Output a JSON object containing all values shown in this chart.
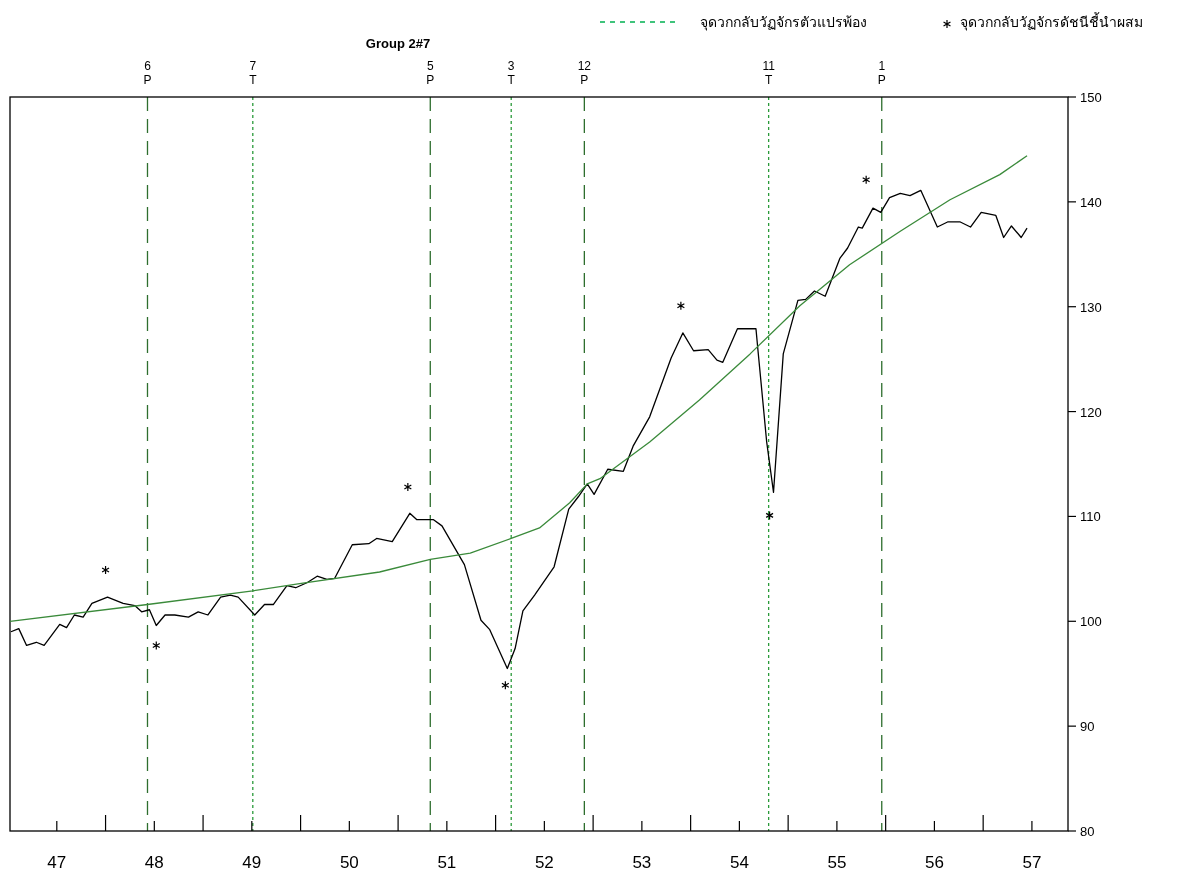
{
  "chart_data": {
    "type": "line",
    "title": "Group 2#7",
    "annotations": [
      "จุดวกกลับวัฏจักรตัวแปรพ้อง"
    ],
    "xlim": [
      46.52,
      57.37
    ],
    "xticks": [
      47,
      48,
      49,
      50,
      51,
      52,
      53,
      54,
      55,
      56,
      57,
      {
        "value": 47.5,
        "label": null
      },
      {
        "value": 48.5,
        "label": null
      },
      {
        "value": 49.5,
        "label": null
      },
      {
        "value": 50.5,
        "label": null
      },
      {
        "value": 51.5,
        "label": null
      },
      {
        "value": 52.5,
        "label": null
      },
      {
        "value": 53.5,
        "label": null
      },
      {
        "value": 54.5,
        "label": null
      },
      {
        "value": 55.5,
        "label": null
      },
      {
        "value": 56.5,
        "label": null
      }
    ],
    "ylim": [
      80,
      150
    ],
    "yticks": [
      80,
      90,
      100,
      110,
      120,
      130,
      140,
      150
    ],
    "legend": "top right",
    "series": [
      {
        "type": "line",
        "color": "#000000",
        "x": [
          46.53,
          46.61,
          46.69,
          46.79,
          46.87,
          47.03,
          47.1,
          47.18,
          47.27,
          47.36,
          47.52,
          47.68,
          47.8,
          47.87,
          47.95,
          48.02,
          48.11,
          48.21,
          48.35,
          48.45,
          48.55,
          48.68,
          48.78,
          48.86,
          49.03,
          49.13,
          49.22,
          49.36,
          49.45,
          49.57,
          49.67,
          49.77,
          49.85,
          50.03,
          50.2,
          50.28,
          50.44,
          50.62,
          50.69,
          50.86,
          50.95,
          51.18,
          51.35,
          51.44,
          51.62,
          51.7,
          51.78,
          51.9,
          52.1,
          52.25,
          52.35,
          52.44,
          52.51,
          52.65,
          52.81,
          52.91,
          53.08,
          53.3,
          53.42,
          53.53,
          53.68,
          53.77,
          53.83,
          53.98,
          54.17,
          54.19,
          54.28,
          54.35,
          54.45,
          54.6,
          54.68,
          54.77,
          54.88,
          55.03,
          55.11,
          55.22,
          55.26,
          55.37,
          55.45,
          55.54,
          55.65,
          55.75,
          55.86,
          56.03,
          56.14,
          56.26,
          56.37,
          56.48,
          56.63,
          56.71,
          56.79,
          56.89,
          56.95
        ],
        "values": [
          99.0,
          99.3,
          97.7,
          98.0,
          97.7,
          99.7,
          99.4,
          100.6,
          100.4,
          101.7,
          102.3,
          101.7,
          101.5,
          100.9,
          101.1,
          99.6,
          100.6,
          100.6,
          100.4,
          100.9,
          100.6,
          102.3,
          102.5,
          102.3,
          100.6,
          101.6,
          101.6,
          103.4,
          103.2,
          103.7,
          104.3,
          104.0,
          104.1,
          107.3,
          107.4,
          107.9,
          107.6,
          110.3,
          109.7,
          109.7,
          109.1,
          105.4,
          100.1,
          99.2,
          95.5,
          97.4,
          101.0,
          102.5,
          105.2,
          110.7,
          111.9,
          113.1,
          112.1,
          114.5,
          114.3,
          116.7,
          119.5,
          125.1,
          127.5,
          125.8,
          125.9,
          124.9,
          124.7,
          127.9,
          127.9,
          125.9,
          117.1,
          112.3,
          125.5,
          130.6,
          130.7,
          131.5,
          131.0,
          134.6,
          135.6,
          137.6,
          137.5,
          139.4,
          139.0,
          140.4,
          140.8,
          140.6,
          141.1,
          137.6,
          138.1,
          138.1,
          137.6,
          139.0,
          138.7,
          136.6,
          137.7,
          136.6,
          137.5
        ]
      },
      {
        "type": "line",
        "color": "#3a8a3a",
        "x": [
          46.52,
          47.93,
          49.01,
          49.49,
          50.31,
          50.83,
          51.24,
          51.66,
          51.95,
          52.26,
          52.44,
          52.57,
          53.08,
          53.59,
          54.11,
          54.62,
          55.13,
          55.65,
          56.16,
          56.67,
          56.95
        ],
        "values": [
          100.0,
          101.6,
          102.9,
          103.6,
          104.7,
          105.9,
          106.5,
          107.9,
          108.9,
          111.3,
          113.1,
          113.6,
          117.1,
          121.1,
          125.5,
          130.1,
          134.0,
          137.2,
          140.2,
          142.6,
          144.4
        ]
      },
      {
        "type": "scatter",
        "name": "จุดวกกลับวัฏจักรดัชนีชี้นำผสม",
        "color": "#000000",
        "marker": "cross",
        "x": [
          47.5,
          48.02,
          50.6,
          51.6,
          53.4,
          54.31,
          55.3
        ],
        "values": [
          104.9,
          97.7,
          112.8,
          93.9,
          130.1,
          110.1,
          142.1
        ]
      }
    ],
    "ref_lines": [
      {
        "axis": "x",
        "value": 47.93,
        "label": "6 P",
        "color": "#2e6e2e",
        "line_style": "dashed"
      },
      {
        "axis": "x",
        "value": 49.01,
        "label": "7 T",
        "color": "#2a9a3a",
        "line_style": "dotted"
      },
      {
        "axis": "x",
        "value": 50.83,
        "label": "5 P",
        "color": "#2e6e2e",
        "line_style": "dashed"
      },
      {
        "axis": "x",
        "value": 51.66,
        "label": "3 T",
        "color": "#2a9a3a",
        "line_style": "dotted"
      },
      {
        "axis": "x",
        "value": 52.41,
        "label": "12 P",
        "color": "#2e6e2e",
        "line_style": "dashed"
      },
      {
        "axis": "x",
        "value": 54.3,
        "label": "11 T",
        "color": "#2a9a3a",
        "line_style": "dotted"
      },
      {
        "axis": "x",
        "value": 55.46,
        "label": "1 P",
        "color": "#2e6e2e",
        "line_style": "dashed"
      }
    ]
  }
}
